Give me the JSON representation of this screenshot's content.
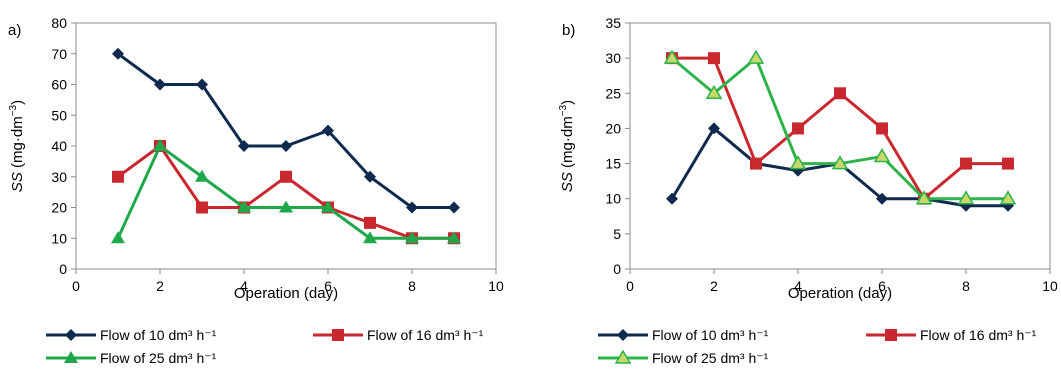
{
  "chart_data": [
    {
      "panel_label": "a)",
      "type": "line",
      "xlabel": "Operation (day)",
      "ylabel_italic": "SS",
      "ylabel_rest": " (mg·dm",
      "ylabel_sup": "−3",
      "ylabel_close": ")",
      "xlim": [
        0,
        10
      ],
      "ylim": [
        0,
        80
      ],
      "xticks": [
        0,
        2,
        4,
        6,
        8,
        10
      ],
      "yticks": [
        0,
        10,
        20,
        30,
        40,
        50,
        60,
        70,
        80
      ],
      "grid": false,
      "legend_position": "bottom",
      "series": [
        {
          "name": "Flow of 10 dm³ h⁻¹",
          "color": "#0f2a4e",
          "marker": "diamond",
          "x": [
            1,
            2,
            3,
            4,
            5,
            6,
            7,
            8,
            9
          ],
          "y": [
            70,
            60,
            60,
            40,
            40,
            45,
            30,
            20,
            20
          ]
        },
        {
          "name": "Flow of 16 dm³ h⁻¹",
          "color": "#c8282e",
          "marker": "square",
          "x": [
            1,
            2,
            3,
            4,
            5,
            6,
            7,
            8,
            9
          ],
          "y": [
            30,
            40,
            20,
            20,
            30,
            20,
            15,
            10,
            10
          ]
        },
        {
          "name": "Flow of 25 dm³ h⁻¹",
          "color": "#1ea84a",
          "marker": "triangle",
          "x": [
            1,
            2,
            3,
            4,
            5,
            6,
            7,
            8,
            9
          ],
          "y": [
            10,
            40,
            30,
            20,
            20,
            20,
            10,
            10,
            10
          ]
        }
      ]
    },
    {
      "panel_label": "b)",
      "type": "line",
      "xlabel": "Operation (day)",
      "ylabel_italic": "SS",
      "ylabel_rest": " (mg·dm",
      "ylabel_sup": "−3",
      "ylabel_close": ")",
      "xlim": [
        0,
        10
      ],
      "ylim": [
        0,
        35
      ],
      "xticks": [
        0,
        2,
        4,
        6,
        8,
        10
      ],
      "yticks": [
        0,
        5,
        10,
        15,
        20,
        25,
        30,
        35
      ],
      "grid": false,
      "legend_position": "bottom",
      "series": [
        {
          "name": "Flow of 10 dm³ h⁻¹",
          "color": "#0f2a4e",
          "marker": "diamond",
          "x": [
            1,
            2,
            3,
            4,
            5,
            6,
            7,
            8,
            9
          ],
          "y": [
            10,
            20,
            15,
            14,
            15,
            10,
            10,
            9,
            9
          ]
        },
        {
          "name": "Flow of 16 dm³ h⁻¹",
          "color": "#c8282e",
          "marker": "square",
          "x": [
            1,
            2,
            3,
            4,
            5,
            6,
            7,
            8,
            9
          ],
          "y": [
            30,
            30,
            15,
            20,
            25,
            20,
            10,
            15,
            15
          ]
        },
        {
          "name": "Flow of 25 dm³ h⁻¹",
          "color": "#2db34a",
          "marker": "triangle-light",
          "x": [
            1,
            2,
            3,
            4,
            5,
            6,
            7,
            8,
            9
          ],
          "y": [
            30,
            25,
            30,
            15,
            15,
            16,
            10,
            10,
            10
          ]
        }
      ]
    }
  ]
}
